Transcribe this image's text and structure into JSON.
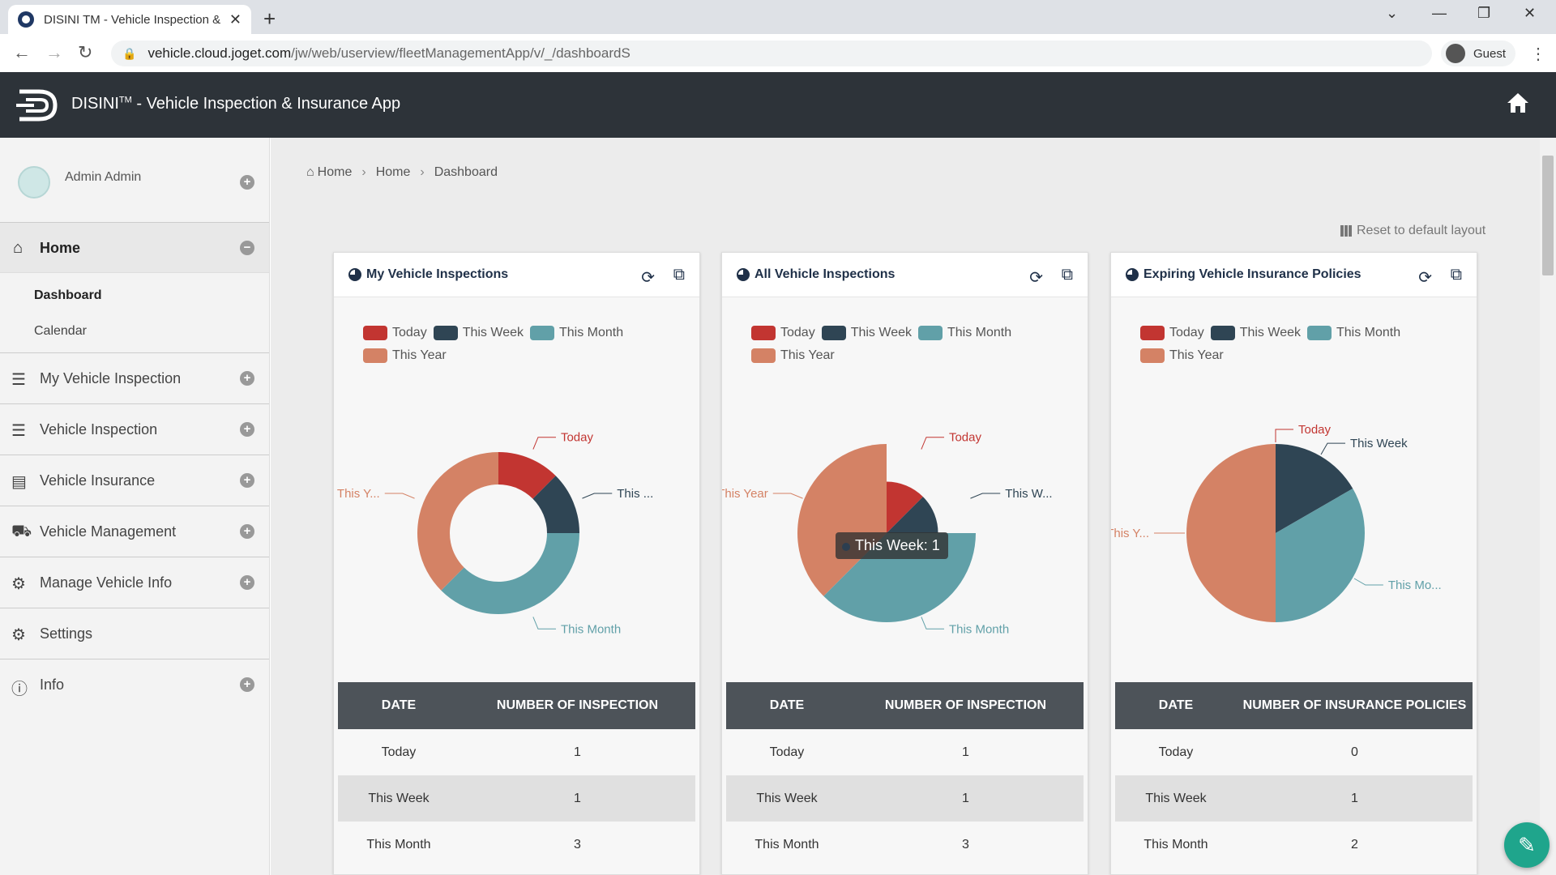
{
  "browser": {
    "tab_title": "DISINI TM - Vehicle Inspection &",
    "url_host": "vehicle.cloud.joget.com",
    "url_path": "/jw/web/userview/fleetManagementApp/v/_/dashboardS",
    "profile_label": "Guest"
  },
  "app": {
    "title_main": "DISINI",
    "title_tm": "TM",
    "title_rest": " - Vehicle Inspection & Insurance App"
  },
  "sidebar": {
    "user_name": "Admin Admin",
    "home_label": "Home",
    "home_sub": [
      "Dashboard",
      "Calendar"
    ],
    "items": [
      {
        "label": "My Vehicle Inspection",
        "icon": "checklist-icon",
        "expandable": true
      },
      {
        "label": "Vehicle Inspection",
        "icon": "checklist-icon",
        "expandable": true
      },
      {
        "label": "Vehicle Insurance",
        "icon": "document-icon",
        "expandable": true
      },
      {
        "label": "Vehicle Management",
        "icon": "truck-icon",
        "expandable": true
      },
      {
        "label": "Manage Vehicle Info",
        "icon": "gear-icon",
        "expandable": true
      },
      {
        "label": "Settings",
        "icon": "gears-icon",
        "expandable": false
      },
      {
        "label": "Info",
        "icon": "info-icon",
        "expandable": true
      }
    ]
  },
  "breadcrumb": {
    "items": [
      "Home",
      "Home",
      "Dashboard"
    ]
  },
  "reset_layout_label": "Reset to default layout",
  "colors": {
    "today": "#c23531",
    "week": "#2f4554",
    "month": "#61a0a8",
    "year": "#d48265"
  },
  "legend_labels": [
    "Today",
    "This Week",
    "This Month",
    "This Year"
  ],
  "cards": [
    {
      "title": "My Vehicle Inspections",
      "table_headers": [
        "DATE",
        "NUMBER OF INSPECTION"
      ],
      "rows": [
        [
          "Today",
          "1"
        ],
        [
          "This Week",
          "1"
        ],
        [
          "This Month",
          "3"
        ]
      ],
      "chart_labels": {
        "today": "Today",
        "week": "This ...",
        "month": "This Month",
        "year": "This Y..."
      }
    },
    {
      "title": "All Vehicle Inspections",
      "table_headers": [
        "DATE",
        "NUMBER OF INSPECTION"
      ],
      "rows": [
        [
          "Today",
          "1"
        ],
        [
          "This Week",
          "1"
        ],
        [
          "This Month",
          "3"
        ]
      ],
      "chart_labels": {
        "today": "Today",
        "week": "This W...",
        "month": "This Month",
        "year": "This Year"
      },
      "tooltip": "This Week: 1"
    },
    {
      "title": "Expiring Vehicle Insurance Policies",
      "table_headers": [
        "DATE",
        "NUMBER OF INSURANCE POLICIES"
      ],
      "rows": [
        [
          "Today",
          "0"
        ],
        [
          "This Week",
          "1"
        ],
        [
          "This Month",
          "2"
        ]
      ],
      "chart_labels": {
        "today": "Today",
        "week": "This Week",
        "month": "This Mo...",
        "year": "This Y..."
      }
    }
  ],
  "chart_data": [
    {
      "type": "pie",
      "variant": "donut",
      "title": "My Vehicle Inspections",
      "categories": [
        "Today",
        "This Week",
        "This Month",
        "This Year"
      ],
      "values": [
        1,
        1,
        3,
        3
      ]
    },
    {
      "type": "pie",
      "variant": "rose",
      "title": "All Vehicle Inspections",
      "categories": [
        "Today",
        "This Week",
        "This Month",
        "This Year"
      ],
      "values": [
        1,
        1,
        3,
        3
      ]
    },
    {
      "type": "pie",
      "variant": "pie",
      "title": "Expiring Vehicle Insurance Policies",
      "categories": [
        "Today",
        "This Week",
        "This Month",
        "This Year"
      ],
      "values": [
        0,
        1,
        2,
        3
      ]
    }
  ]
}
